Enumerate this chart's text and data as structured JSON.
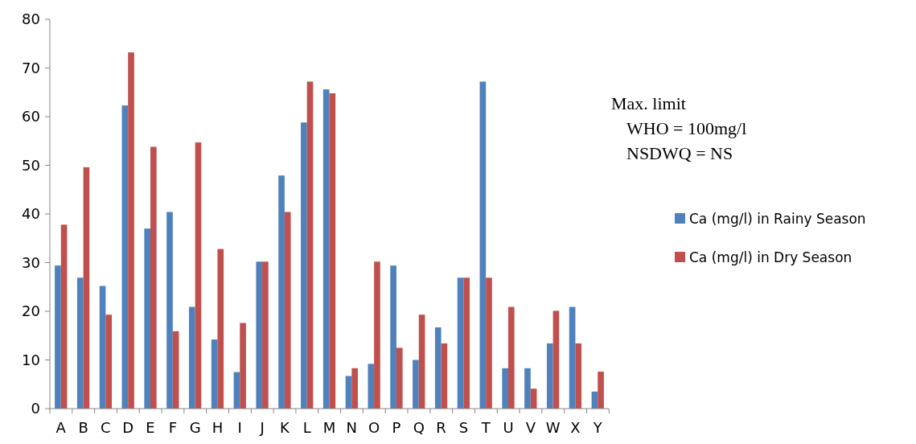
{
  "chart_data": {
    "type": "bar",
    "categories": [
      "A",
      "B",
      "C",
      "D",
      "E",
      "F",
      "G",
      "H",
      "I",
      "J",
      "K",
      "L",
      "M",
      "N",
      "O",
      "P",
      "Q",
      "R",
      "S",
      "T",
      "U",
      "V",
      "W",
      "X",
      "Y"
    ],
    "series": [
      {
        "name": "Ca (mg/l) in Rainy Season",
        "color": "#4f81bd",
        "values": [
          29.4,
          26.9,
          25.2,
          62.3,
          37.0,
          40.4,
          20.9,
          14.2,
          7.5,
          30.2,
          47.9,
          58.8,
          65.6,
          6.7,
          9.2,
          29.4,
          10.0,
          16.7,
          26.9,
          67.2,
          8.3,
          8.3,
          13.4,
          20.9,
          3.5
        ]
      },
      {
        "name": "Ca (mg/l) in Dry Season",
        "color": "#c0504d",
        "values": [
          37.8,
          49.6,
          19.3,
          73.2,
          53.8,
          15.9,
          54.7,
          32.8,
          17.6,
          30.2,
          40.4,
          67.2,
          64.8,
          8.3,
          30.2,
          12.5,
          19.3,
          13.4,
          26.9,
          26.9,
          20.9,
          4.1,
          20.1,
          13.4,
          7.6
        ]
      }
    ],
    "ylim": [
      0,
      80
    ],
    "yticks": [
      0,
      10,
      20,
      30,
      40,
      50,
      60,
      70,
      80
    ],
    "grid": false,
    "legend": "right",
    "annotations": [
      "Max. limit",
      "WHO = 100mg/l",
      "NSDWQ = NS"
    ]
  }
}
